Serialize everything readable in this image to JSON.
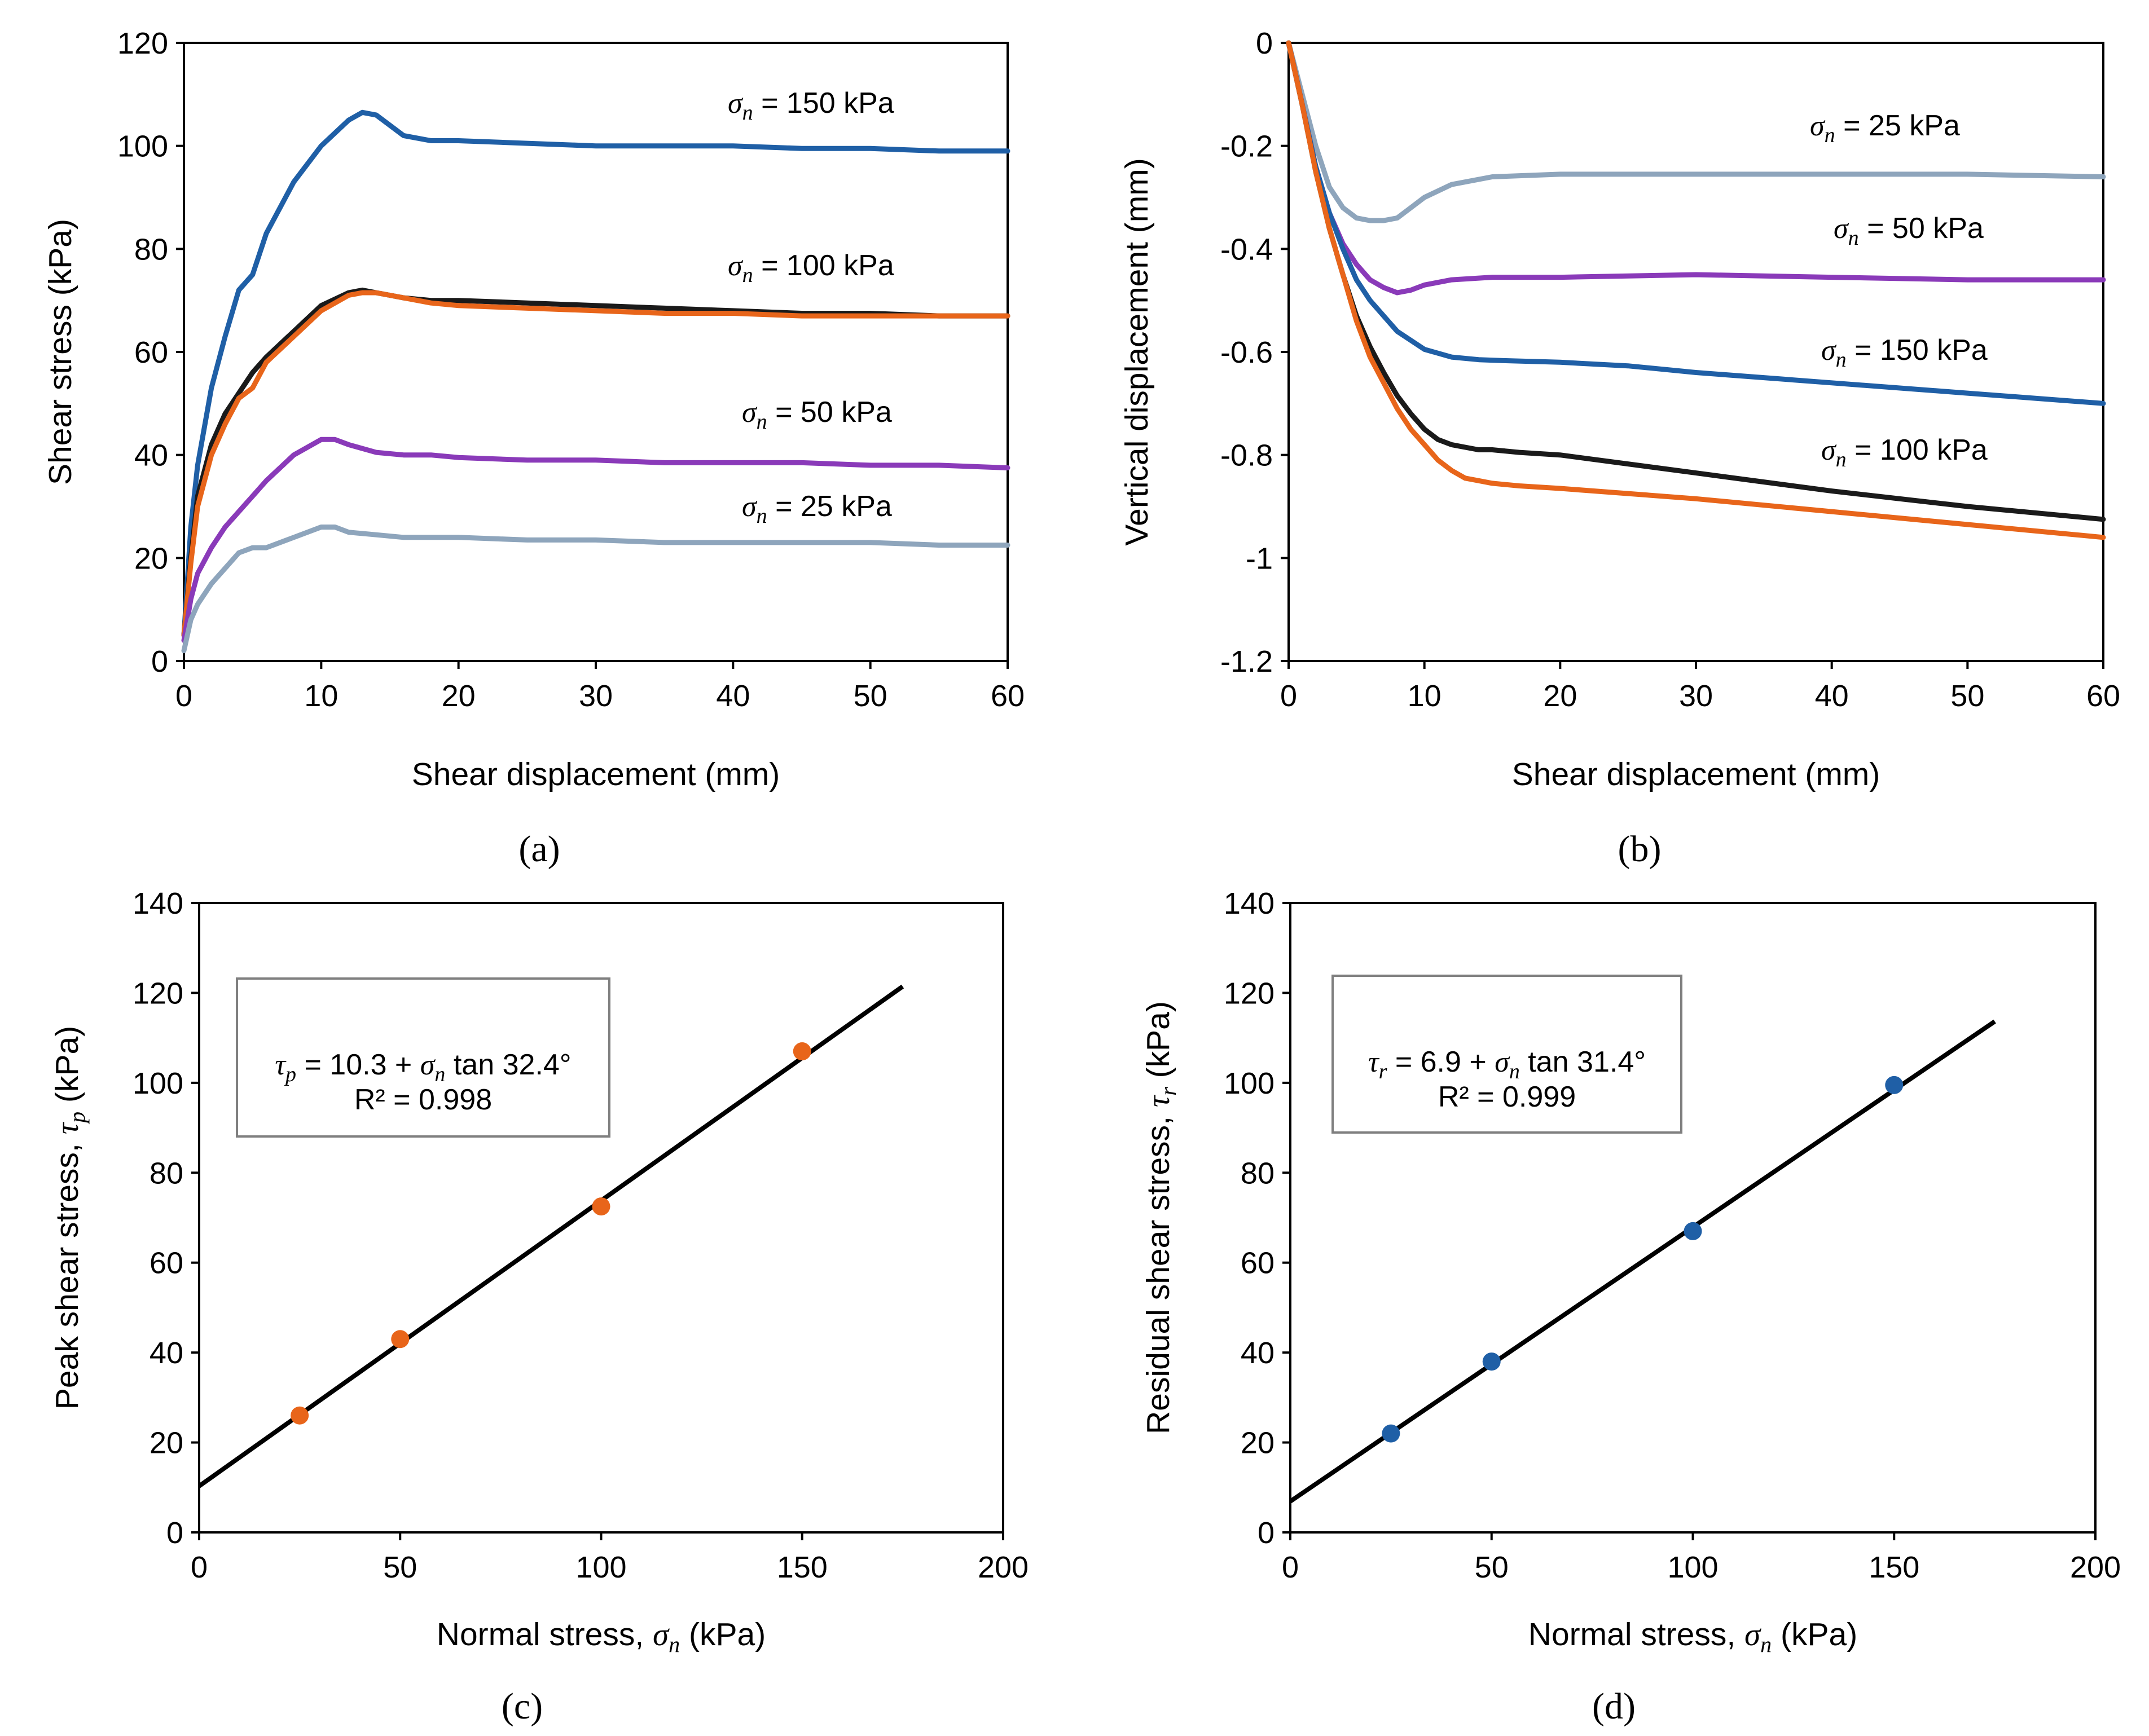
{
  "colors": {
    "s150": "#1f5fa6",
    "s100": "#1a1a1a",
    "s100b": "#e8651a",
    "s50": "#8a3ab9",
    "s25": "#8ea5bc",
    "peak": "#e8651a",
    "resid": "#1f5fa6",
    "fit": "#000000"
  },
  "chart_data": [
    {
      "panel": "a",
      "caption": "(a)",
      "type": "line",
      "xlabel": "Shear displacement (mm)",
      "ylabel": "Shear stress (kPa)",
      "xlim": [
        0,
        60
      ],
      "ylim": [
        0,
        120
      ],
      "xticks": [
        "0",
        "10",
        "20",
        "30",
        "40",
        "50",
        "60"
      ],
      "yticks": [
        "0",
        "20",
        "40",
        "60",
        "80",
        "100",
        "120"
      ],
      "series": [
        {
          "name": "σn = 150 kPa",
          "color_key": "s150",
          "x": [
            0,
            0.5,
            1,
            2,
            3,
            4,
            5,
            6,
            8,
            10,
            12,
            13,
            14,
            15,
            16,
            18,
            20,
            25,
            30,
            35,
            40,
            45,
            50,
            55,
            60
          ],
          "y": [
            5,
            26,
            38,
            53,
            63,
            72,
            75,
            83,
            93,
            100,
            105,
            106.5,
            106,
            104,
            102,
            101,
            101,
            100.5,
            100,
            100,
            100,
            99.5,
            99.5,
            99,
            99
          ]
        },
        {
          "name": "σn = 100 kPa",
          "color_key": "s100",
          "x": [
            0,
            0.5,
            1,
            2,
            3,
            4,
            5,
            6,
            8,
            10,
            12,
            13,
            14,
            15,
            16,
            18,
            20,
            25,
            30,
            35,
            40,
            45,
            50,
            55,
            60
          ],
          "y": [
            5,
            20,
            32,
            42,
            48,
            52,
            56,
            59,
            64,
            69,
            71.5,
            72,
            71.5,
            71,
            70.5,
            70,
            70,
            69.5,
            69,
            68.5,
            68,
            67.5,
            67.5,
            67,
            67
          ]
        },
        {
          "name": "σn = 100 kPa",
          "color_key": "s100b",
          "x": [
            0,
            0.5,
            1,
            2,
            3,
            4,
            5,
            6,
            8,
            10,
            12,
            13,
            14,
            15,
            16,
            18,
            20,
            25,
            30,
            35,
            40,
            45,
            50,
            55,
            60
          ],
          "y": [
            5,
            19,
            30,
            40,
            46,
            51,
            53,
            58,
            63,
            68,
            71,
            71.5,
            71.5,
            71,
            70.5,
            69.5,
            69,
            68.5,
            68,
            67.5,
            67.5,
            67,
            67,
            67,
            67
          ]
        },
        {
          "name": "σn = 50 kPa",
          "color_key": "s50",
          "x": [
            0,
            0.5,
            1,
            2,
            3,
            4,
            5,
            6,
            8,
            10,
            11,
            12,
            14,
            16,
            18,
            20,
            25,
            30,
            35,
            40,
            45,
            50,
            55,
            60
          ],
          "y": [
            4,
            12,
            17,
            22,
            26,
            29,
            32,
            35,
            40,
            43,
            43,
            42,
            40.5,
            40,
            40,
            39.5,
            39,
            39,
            38.5,
            38.5,
            38.5,
            38,
            38,
            37.5
          ]
        },
        {
          "name": "σn = 25 kPa",
          "color_key": "s25",
          "x": [
            0,
            0.5,
            1,
            2,
            3,
            4,
            5,
            6,
            8,
            10,
            11,
            12,
            14,
            16,
            18,
            20,
            25,
            30,
            35,
            40,
            45,
            50,
            55,
            60
          ],
          "y": [
            2,
            8,
            11,
            15,
            18,
            21,
            22,
            22,
            24,
            26,
            26,
            25,
            24.5,
            24,
            24,
            24,
            23.5,
            23.5,
            23,
            23,
            23,
            23,
            22.5,
            22.5
          ]
        }
      ],
      "labels": [
        {
          "prefix": "σ",
          "sub": "n",
          "text": " = 150 kPa"
        },
        {
          "prefix": "σ",
          "sub": "n",
          "text": " = 100 kPa"
        },
        {
          "prefix": "σ",
          "sub": "n",
          "text": " = 50 kPa"
        },
        {
          "prefix": "σ",
          "sub": "n",
          "text": " = 25 kPa"
        }
      ]
    },
    {
      "panel": "b",
      "caption": "(b)",
      "type": "line",
      "xlabel": "Shear displacement (mm)",
      "ylabel": "Vertical displacement (mm)",
      "xlim": [
        0,
        60
      ],
      "ylim": [
        -1.2,
        0
      ],
      "xticks": [
        "0",
        "10",
        "20",
        "30",
        "40",
        "50",
        "60"
      ],
      "yticks": [
        "0",
        "-0.2",
        "-0.4",
        "-0.6",
        "-0.8",
        "-1",
        "-1.2"
      ],
      "series": [
        {
          "name": "σn = 25 kPa",
          "color_key": "s25",
          "x": [
            0,
            1,
            2,
            3,
            4,
            5,
            6,
            7,
            8,
            9,
            10,
            12,
            15,
            20,
            30,
            40,
            50,
            60
          ],
          "y": [
            0,
            -0.1,
            -0.2,
            -0.28,
            -0.32,
            -0.34,
            -0.345,
            -0.345,
            -0.34,
            -0.32,
            -0.3,
            -0.275,
            -0.26,
            -0.255,
            -0.255,
            -0.255,
            -0.255,
            -0.26
          ]
        },
        {
          "name": "σn = 50 kPa",
          "color_key": "s50",
          "x": [
            0,
            1,
            2,
            3,
            4,
            5,
            6,
            7,
            8,
            9,
            10,
            12,
            15,
            20,
            30,
            40,
            50,
            60
          ],
          "y": [
            0,
            -0.12,
            -0.24,
            -0.33,
            -0.39,
            -0.43,
            -0.46,
            -0.475,
            -0.485,
            -0.48,
            -0.47,
            -0.46,
            -0.455,
            -0.455,
            -0.45,
            -0.455,
            -0.46,
            -0.46
          ]
        },
        {
          "name": "σn = 150 kPa",
          "color_key": "s150",
          "x": [
            0,
            1,
            2,
            3,
            4,
            5,
            6,
            8,
            10,
            12,
            14,
            16,
            20,
            25,
            30,
            40,
            50,
            60
          ],
          "y": [
            0,
            -0.12,
            -0.24,
            -0.33,
            -0.4,
            -0.46,
            -0.5,
            -0.56,
            -0.595,
            -0.61,
            -0.615,
            -0.617,
            -0.62,
            -0.627,
            -0.64,
            -0.66,
            -0.68,
            -0.7
          ]
        },
        {
          "name": "σn = 100 kPa",
          "color_key": "s100",
          "x": [
            0,
            1,
            2,
            3,
            4,
            5,
            6,
            7,
            8,
            9,
            10,
            11,
            12,
            13,
            14,
            15,
            17,
            20,
            30,
            40,
            50,
            60
          ],
          "y": [
            0,
            -0.12,
            -0.25,
            -0.36,
            -0.45,
            -0.53,
            -0.59,
            -0.64,
            -0.685,
            -0.72,
            -0.75,
            -0.77,
            -0.78,
            -0.785,
            -0.79,
            -0.79,
            -0.795,
            -0.8,
            -0.835,
            -0.87,
            -0.9,
            -0.925
          ]
        },
        {
          "name": "σn = 100 kPa",
          "color_key": "s100b",
          "x": [
            0,
            1,
            2,
            3,
            4,
            5,
            6,
            7,
            8,
            9,
            10,
            11,
            12,
            13,
            14,
            15,
            17,
            20,
            30,
            40,
            50,
            60
          ],
          "y": [
            0,
            -0.12,
            -0.25,
            -0.36,
            -0.45,
            -0.54,
            -0.61,
            -0.66,
            -0.71,
            -0.75,
            -0.78,
            -0.81,
            -0.83,
            -0.845,
            -0.85,
            -0.855,
            -0.86,
            -0.865,
            -0.885,
            -0.91,
            -0.935,
            -0.96
          ]
        }
      ],
      "labels": [
        {
          "prefix": "σ",
          "sub": "n",
          "text": " = 25 kPa"
        },
        {
          "prefix": "σ",
          "sub": "n",
          "text": " = 50 kPa"
        },
        {
          "prefix": "σ",
          "sub": "n",
          "text": " = 150 kPa"
        },
        {
          "prefix": "σ",
          "sub": "n",
          "text": " = 100 kPa"
        }
      ]
    },
    {
      "panel": "c",
      "caption": "(c)",
      "type": "scatter",
      "xlabel": {
        "pre": "Normal stress, ",
        "sym": "σ",
        "sub": "n",
        "post": " (kPa)"
      },
      "ylabel": {
        "pre": "Peak shear stress, ",
        "sym": "τ",
        "sub": "p",
        "post": " (kPa)"
      },
      "xlim": [
        0,
        200
      ],
      "ylim": [
        0,
        140
      ],
      "xticks": [
        "0",
        "50",
        "100",
        "150",
        "200"
      ],
      "yticks": [
        "0",
        "20",
        "40",
        "60",
        "80",
        "100",
        "120",
        "140"
      ],
      "points": {
        "x": [
          25,
          50,
          100,
          150
        ],
        "y": [
          26,
          43,
          72.5,
          107
        ]
      },
      "fit": {
        "intercept": 10.3,
        "slope": 0.635,
        "x_end": 175
      },
      "equation": {
        "sym": "τ",
        "sub": "p",
        "mid": " = 10.3 + ",
        "sym2": "σ",
        "sub2": "n",
        "tail": " tan 32.4°"
      },
      "r2": "R² = 0.998"
    },
    {
      "panel": "d",
      "caption": "(d)",
      "type": "scatter",
      "xlabel": {
        "pre": "Normal stress, ",
        "sym": "σ",
        "sub": "n",
        "post": " (kPa)"
      },
      "ylabel": {
        "pre": "Residual shear stress, ",
        "sym": "τ",
        "sub": "r",
        "post": " (kPa)"
      },
      "xlim": [
        0,
        200
      ],
      "ylim": [
        0,
        140
      ],
      "xticks": [
        "0",
        "50",
        "100",
        "150",
        "200"
      ],
      "yticks": [
        "0",
        "20",
        "40",
        "60",
        "80",
        "100",
        "120",
        "140"
      ],
      "points": {
        "x": [
          25,
          50,
          100,
          150
        ],
        "y": [
          22,
          38,
          67,
          99.5
        ]
      },
      "fit": {
        "intercept": 6.9,
        "slope": 0.61,
        "x_end": 175
      },
      "equation": {
        "sym": "τ",
        "sub": "r",
        "mid": " = 6.9 + ",
        "sym2": "σ",
        "sub2": "n",
        "tail": " tan 31.4°"
      },
      "r2": "R² = 0.999"
    }
  ]
}
